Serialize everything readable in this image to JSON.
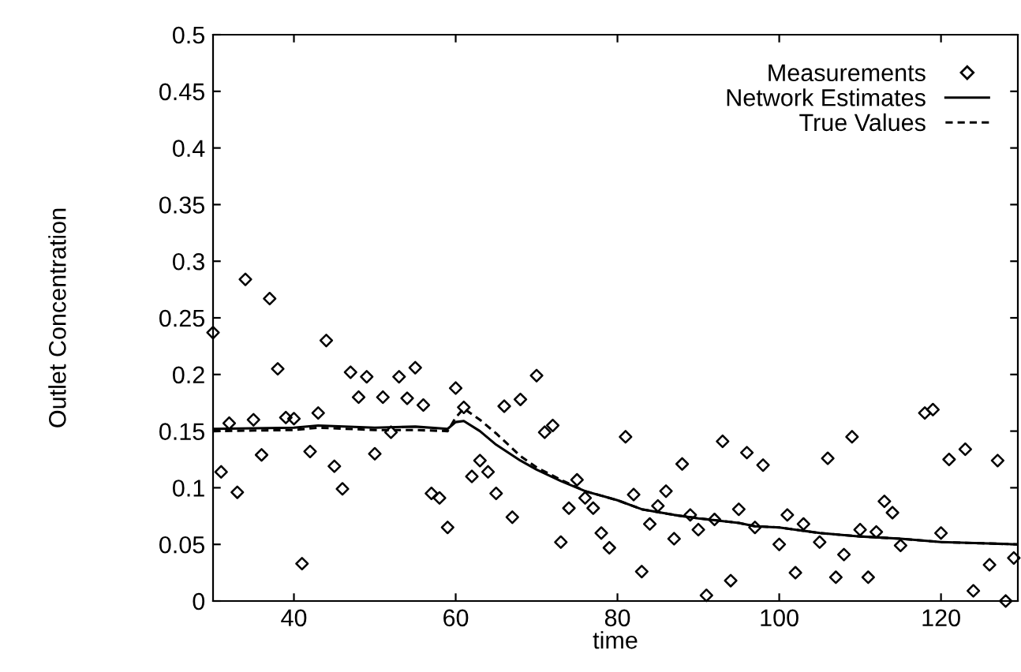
{
  "chart_data": {
    "type": "scatter",
    "xlabel": "time",
    "ylabel": "Outlet Concentration",
    "xlim": [
      30,
      129.5
    ],
    "ylim": [
      0,
      0.5
    ],
    "xticks": [
      40,
      60,
      80,
      100,
      120
    ],
    "yticks": [
      0,
      0.05,
      0.1,
      0.15,
      0.2,
      0.25,
      0.3,
      0.35,
      0.4,
      0.45,
      0.5
    ],
    "legend": "top right",
    "grid": false,
    "series": [
      {
        "name": "Measurements",
        "marker": "diamond",
        "color": "#000000",
        "x": [
          30,
          31,
          32,
          33,
          34,
          35,
          36,
          37,
          38,
          39,
          40,
          41,
          42,
          43,
          44,
          45,
          46,
          47,
          48,
          49,
          50,
          51,
          52,
          53,
          54,
          55,
          56,
          57,
          58,
          59,
          60,
          61,
          62,
          63,
          64,
          65,
          66,
          67,
          68,
          70,
          71,
          72,
          73,
          74,
          75,
          76,
          77,
          78,
          79,
          81,
          82,
          83,
          84,
          85,
          86,
          87,
          88,
          89,
          90,
          91,
          92,
          93,
          94,
          95,
          96,
          97,
          98,
          100,
          101,
          102,
          103,
          105,
          106,
          107,
          108,
          109,
          110,
          111,
          112,
          113,
          114,
          115,
          118,
          119,
          120,
          121,
          123,
          124,
          126,
          127,
          128,
          129
        ],
        "values": [
          0.237,
          0.114,
          0.157,
          0.096,
          0.284,
          0.16,
          0.129,
          0.267,
          0.205,
          0.162,
          0.161,
          0.033,
          0.132,
          0.166,
          0.23,
          0.119,
          0.099,
          0.202,
          0.18,
          0.198,
          0.13,
          0.18,
          0.149,
          0.198,
          0.179,
          0.206,
          0.173,
          0.095,
          0.091,
          0.065,
          0.188,
          0.171,
          0.11,
          0.124,
          0.114,
          0.095,
          0.172,
          0.074,
          0.178,
          0.199,
          0.149,
          0.155,
          0.052,
          0.082,
          0.107,
          0.091,
          0.082,
          0.06,
          0.047,
          0.145,
          0.094,
          0.026,
          0.068,
          0.084,
          0.097,
          0.055,
          0.121,
          0.076,
          0.063,
          0.005,
          0.072,
          0.141,
          0.018,
          0.081,
          0.131,
          0.065,
          0.12,
          0.05,
          0.076,
          0.025,
          0.068,
          0.052,
          0.126,
          0.021,
          0.041,
          0.145,
          0.063,
          0.021,
          0.061,
          0.088,
          0.078,
          0.049,
          0.166,
          0.169,
          0.06,
          0.125,
          0.134,
          0.009,
          0.032,
          0.124,
          0.0,
          0.038
        ]
      },
      {
        "name": "Network Estimates",
        "type": "line",
        "line_style": "solid",
        "color": "#000000",
        "x": [
          30,
          40,
          43,
          50,
          55,
          59,
          60,
          61,
          63,
          65,
          68,
          70,
          73,
          76,
          80,
          83,
          87,
          90,
          95,
          97,
          100,
          105,
          110,
          115,
          120,
          125,
          129.5
        ],
        "values": [
          0.152,
          0.153,
          0.155,
          0.153,
          0.154,
          0.152,
          0.158,
          0.159,
          0.15,
          0.138,
          0.124,
          0.116,
          0.106,
          0.097,
          0.089,
          0.081,
          0.076,
          0.073,
          0.069,
          0.066,
          0.065,
          0.06,
          0.057,
          0.055,
          0.052,
          0.051,
          0.05
        ]
      },
      {
        "name": "True Values",
        "type": "line",
        "line_style": "dashed",
        "color": "#000000",
        "x": [
          30,
          40,
          43,
          50,
          55,
          59,
          60,
          61,
          63,
          65,
          68,
          70,
          73,
          76,
          80,
          83,
          87,
          90,
          95,
          97,
          100,
          105,
          110,
          115,
          120,
          125,
          129.5
        ],
        "values": [
          0.15,
          0.151,
          0.153,
          0.151,
          0.151,
          0.15,
          0.162,
          0.17,
          0.16,
          0.148,
          0.128,
          0.118,
          0.107,
          0.097,
          0.089,
          0.081,
          0.076,
          0.073,
          0.069,
          0.066,
          0.065,
          0.06,
          0.057,
          0.055,
          0.052,
          0.051,
          0.05
        ]
      }
    ]
  }
}
